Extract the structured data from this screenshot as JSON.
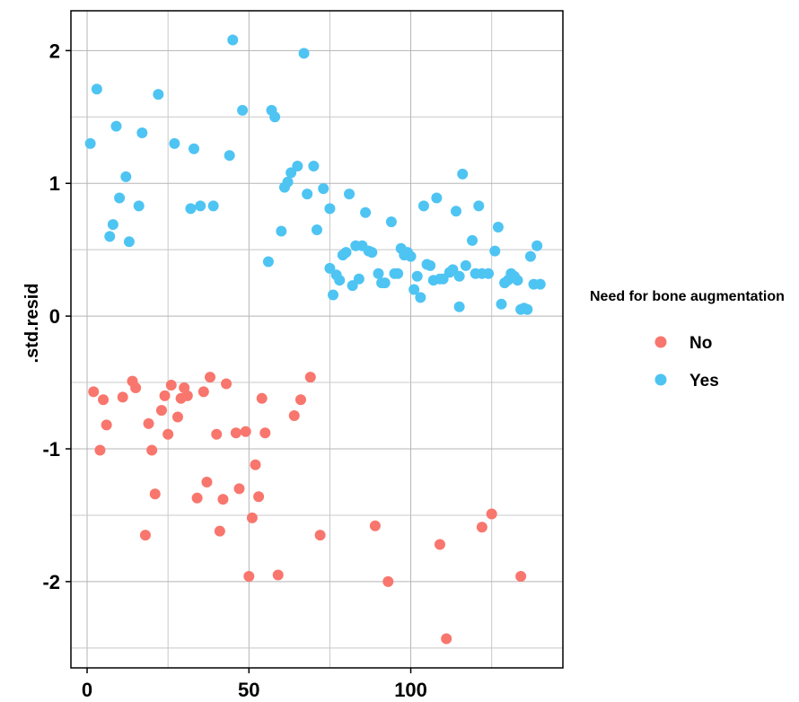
{
  "chart_data": {
    "type": "scatter",
    "title": "",
    "xlabel": "",
    "ylabel": ".std.resid",
    "xlim": [
      -5,
      147
    ],
    "ylim": [
      -2.65,
      2.3
    ],
    "x_ticks": [
      0,
      50,
      100
    ],
    "y_ticks": [
      -2,
      -1,
      0,
      1,
      2
    ],
    "grid": true,
    "legend": {
      "title": "Need for bone augmentation",
      "placement": "right"
    },
    "series": [
      {
        "name": "No",
        "color": "#F8766D",
        "points": [
          [
            2,
            -0.57
          ],
          [
            4,
            -1.01
          ],
          [
            5,
            -0.63
          ],
          [
            6,
            -0.82
          ],
          [
            11,
            -0.61
          ],
          [
            14,
            -0.49
          ],
          [
            15,
            -0.54
          ],
          [
            18,
            -1.65
          ],
          [
            19,
            -0.81
          ],
          [
            20,
            -1.01
          ],
          [
            21,
            -1.34
          ],
          [
            23,
            -0.71
          ],
          [
            24,
            -0.6
          ],
          [
            25,
            -0.89
          ],
          [
            26,
            -0.52
          ],
          [
            28,
            -0.76
          ],
          [
            29,
            -0.62
          ],
          [
            30,
            -0.54
          ],
          [
            31,
            -0.6
          ],
          [
            34,
            -1.37
          ],
          [
            36,
            -0.57
          ],
          [
            37,
            -1.25
          ],
          [
            38,
            -0.46
          ],
          [
            40,
            -0.89
          ],
          [
            41,
            -1.62
          ],
          [
            42,
            -1.38
          ],
          [
            43,
            -0.51
          ],
          [
            46,
            -0.88
          ],
          [
            47,
            -1.3
          ],
          [
            49,
            -0.87
          ],
          [
            50,
            -1.96
          ],
          [
            51,
            -1.52
          ],
          [
            52,
            -1.12
          ],
          [
            53,
            -1.36
          ],
          [
            54,
            -0.62
          ],
          [
            55,
            -0.88
          ],
          [
            59,
            -1.95
          ],
          [
            64,
            -0.75
          ],
          [
            66,
            -0.63
          ],
          [
            69,
            -0.46
          ],
          [
            72,
            -1.65
          ],
          [
            89,
            -1.58
          ],
          [
            93,
            -2.0
          ],
          [
            109,
            -1.72
          ],
          [
            111,
            -2.43
          ],
          [
            122,
            -1.59
          ],
          [
            125,
            -1.49
          ],
          [
            134,
            -1.96
          ]
        ]
      },
      {
        "name": "Yes",
        "color": "#4EC4F3",
        "points": [
          [
            1,
            1.3
          ],
          [
            3,
            1.71
          ],
          [
            7,
            0.6
          ],
          [
            8,
            0.69
          ],
          [
            9,
            1.43
          ],
          [
            10,
            0.89
          ],
          [
            12,
            1.05
          ],
          [
            13,
            0.56
          ],
          [
            16,
            0.83
          ],
          [
            17,
            1.38
          ],
          [
            22,
            1.67
          ],
          [
            27,
            1.3
          ],
          [
            32,
            0.81
          ],
          [
            33,
            1.26
          ],
          [
            35,
            0.83
          ],
          [
            39,
            0.83
          ],
          [
            44,
            1.21
          ],
          [
            45,
            2.08
          ],
          [
            48,
            1.55
          ],
          [
            56,
            0.41
          ],
          [
            57,
            1.55
          ],
          [
            58,
            1.5
          ],
          [
            60,
            0.64
          ],
          [
            61,
            0.97
          ],
          [
            62,
            1.01
          ],
          [
            63,
            1.08
          ],
          [
            65,
            1.13
          ],
          [
            67,
            1.98
          ],
          [
            68,
            0.92
          ],
          [
            70,
            1.13
          ],
          [
            71,
            0.65
          ],
          [
            73,
            0.96
          ],
          [
            75,
            0.81
          ],
          [
            75,
            0.36
          ],
          [
            76,
            0.16
          ],
          [
            77,
            0.31
          ],
          [
            78,
            0.27
          ],
          [
            79,
            0.46
          ],
          [
            80,
            0.48
          ],
          [
            81,
            0.92
          ],
          [
            82,
            0.23
          ],
          [
            83,
            0.53
          ],
          [
            84,
            0.28
          ],
          [
            85,
            0.53
          ],
          [
            86,
            0.78
          ],
          [
            87,
            0.49
          ],
          [
            88,
            0.48
          ],
          [
            90,
            0.32
          ],
          [
            91,
            0.25
          ],
          [
            92,
            0.25
          ],
          [
            94,
            0.71
          ],
          [
            95,
            0.32
          ],
          [
            96,
            0.32
          ],
          [
            97,
            0.51
          ],
          [
            98,
            0.46
          ],
          [
            99,
            0.48
          ],
          [
            100,
            0.45
          ],
          [
            101,
            0.2
          ],
          [
            102,
            0.3
          ],
          [
            103,
            0.14
          ],
          [
            104,
            0.83
          ],
          [
            105,
            0.39
          ],
          [
            106,
            0.38
          ],
          [
            107,
            0.27
          ],
          [
            108,
            0.89
          ],
          [
            109,
            0.28
          ],
          [
            110,
            0.28
          ],
          [
            112,
            0.33
          ],
          [
            113,
            0.35
          ],
          [
            114,
            0.79
          ],
          [
            115,
            0.07
          ],
          [
            115,
            0.3
          ],
          [
            116,
            1.07
          ],
          [
            117,
            0.38
          ],
          [
            119,
            0.57
          ],
          [
            120,
            0.32
          ],
          [
            121,
            0.83
          ],
          [
            122,
            0.32
          ],
          [
            124,
            0.32
          ],
          [
            126,
            0.49
          ],
          [
            127,
            0.67
          ],
          [
            128,
            0.09
          ],
          [
            129,
            0.25
          ],
          [
            130,
            0.27
          ],
          [
            131,
            0.32
          ],
          [
            132,
            0.3
          ],
          [
            133,
            0.27
          ],
          [
            134,
            0.05
          ],
          [
            135,
            0.06
          ],
          [
            136,
            0.05
          ],
          [
            137,
            0.45
          ],
          [
            138,
            0.24
          ],
          [
            139,
            0.53
          ],
          [
            140,
            0.24
          ]
        ]
      }
    ]
  }
}
